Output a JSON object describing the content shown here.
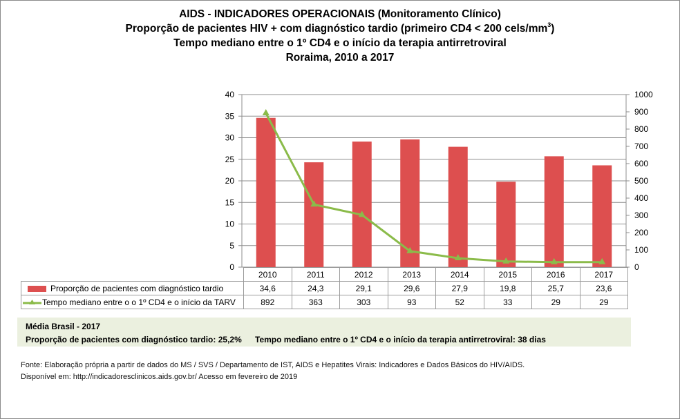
{
  "titles": {
    "line1": "AIDS - INDICADORES OPERACIONAIS (Monitoramento Clínico)",
    "line2_pre": "Proporção de pacientes HIV + com diagnóstico tardio (primeiro CD4 < 200 cels/mm",
    "line2_sup": "3",
    "line2_post": ")",
    "line3": "Tempo mediano entre o 1º CD4 e o início da terapia antirretroviral",
    "line4": "Roraima, 2010 a 2017"
  },
  "chart_data": {
    "type": "bar+line",
    "title": "AIDS - INDICADORES OPERACIONAIS (Monitoramento Clínico) — Roraima, 2010 a 2017",
    "categories": [
      "2010",
      "2011",
      "2012",
      "2013",
      "2014",
      "2015",
      "2016",
      "2017"
    ],
    "series": [
      {
        "name": "Proporção de pacientes com diagnóstico tardio",
        "type": "bar",
        "axis": "left",
        "color": "#dd4f4f",
        "values": [
          34.6,
          24.3,
          29.1,
          29.6,
          27.9,
          19.8,
          25.7,
          23.6
        ],
        "labels": [
          "34,6",
          "24,3",
          "29,1",
          "29,6",
          "27,9",
          "19,8",
          "25,7",
          "23,6"
        ]
      },
      {
        "name": "Tempo mediano entre o o 1º CD4 e o início da TARV",
        "type": "line",
        "axis": "right",
        "color": "#8bbb4a",
        "marker": "triangle",
        "values": [
          892,
          363,
          303,
          93,
          52,
          33,
          29,
          29
        ],
        "labels": [
          "892",
          "363",
          "303",
          "93",
          "52",
          "33",
          "29",
          "29"
        ]
      }
    ],
    "left_axis": {
      "min": 0,
      "max": 40,
      "ticks": [
        "0",
        "5",
        "10",
        "15",
        "20",
        "25",
        "30",
        "35",
        "40"
      ]
    },
    "right_axis": {
      "min": 0,
      "max": 1000,
      "ticks": [
        "0",
        "100",
        "200",
        "300",
        "400",
        "500",
        "600",
        "700",
        "800",
        "900",
        "1000"
      ]
    },
    "grid": true,
    "legend_position": "data-table"
  },
  "table": {
    "row1_label": "Proporção de pacientes com diagnóstico tardio",
    "row2_label": "Tempo mediano entre o o 1º CD4 e o início da TARV"
  },
  "brasil": {
    "heading": "Média Brasil - 2017",
    "proporcao": "Proporção de pacientes com diagnóstico  tardio: 25,2%",
    "tempo": "Tempo mediano entre o 1º CD4 e o início da terapia antirretroviral: 38 dias"
  },
  "source": {
    "line1": "Fonte: Elaboração própria a partir de dados do  MS / SVS / Departamento de IST, AIDS e Hepatites Virais: Indicadores e Dados Básicos do HIV/AIDS.",
    "line2": "Disponível em: http://indicadoresclinicos.aids.gov.br/ Acesso em fevereiro de 2019"
  }
}
